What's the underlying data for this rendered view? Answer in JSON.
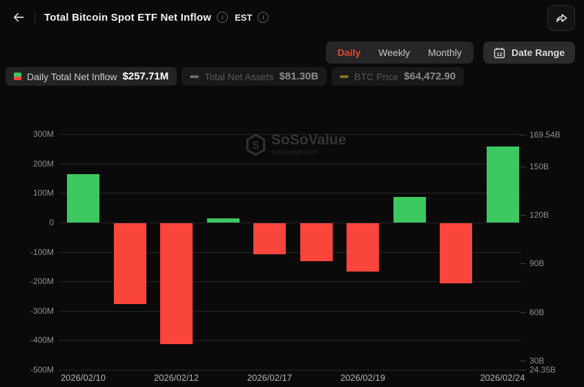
{
  "header": {
    "title": "Total Bitcoin Spot ETF Net Inflow",
    "timezone": "EST"
  },
  "toolbar": {
    "tabs": [
      {
        "label": "Daily",
        "active": true
      },
      {
        "label": "Weekly",
        "active": false
      },
      {
        "label": "Monthly",
        "active": false
      }
    ],
    "date_range_label": "Date Range"
  },
  "legend": [
    {
      "label": "Daily Total Net Inflow",
      "value": "$257.71M",
      "icon": "green-red-square",
      "active": true
    },
    {
      "label": "Total Net Assets",
      "value": "$81.30B",
      "icon": "gray-dash",
      "active": false
    },
    {
      "label": "BTC Price",
      "value": "$64,472.90",
      "icon": "gold-dash",
      "active": false
    }
  ],
  "watermark": {
    "name": "SoSoValue",
    "domain": "sosovalue.com"
  },
  "colors": {
    "positive": "#3dc860",
    "negative": "#fa453d",
    "accent": "#e2472e",
    "gold_dash": "#87702a",
    "gray_dash": "#6a6a6a"
  },
  "chart_data": {
    "type": "bar",
    "title": "Total Bitcoin Spot ETF Net Inflow (Daily)",
    "series_name": "Daily Total Net Inflow",
    "values_musd": [
      165,
      -275,
      -410,
      15,
      -105,
      -130,
      -165,
      88,
      -205,
      257.71
    ],
    "x_ticks": [
      {
        "bar": 0,
        "label": "2026/02/10"
      },
      {
        "bar": 2,
        "label": "2026/02/12"
      },
      {
        "bar": 4,
        "label": "2026/02/17"
      },
      {
        "bar": 6,
        "label": "2026/02/19"
      },
      {
        "bar": 9,
        "label": "2026/02/24"
      }
    ],
    "left_axis": {
      "min": -500,
      "max": 300,
      "step": 100,
      "tick_labels": [
        "300M",
        "200M",
        "100M",
        "0",
        "-100M",
        "-200M",
        "-300M",
        "-400M",
        "-500M"
      ]
    },
    "right_axis": {
      "min": 24.35,
      "max": 169.54,
      "ticks": [
        {
          "value": 169.54,
          "label": "169.54B"
        },
        {
          "value": 150,
          "label": "150B"
        },
        {
          "value": 120,
          "label": "120B"
        },
        {
          "value": 90,
          "label": "90B"
        },
        {
          "value": 60,
          "label": "60B"
        },
        {
          "value": 30,
          "label": "30B"
        },
        {
          "value": 24.35,
          "label": "24.35B"
        }
      ]
    },
    "grid": true,
    "legend_position": "top"
  }
}
